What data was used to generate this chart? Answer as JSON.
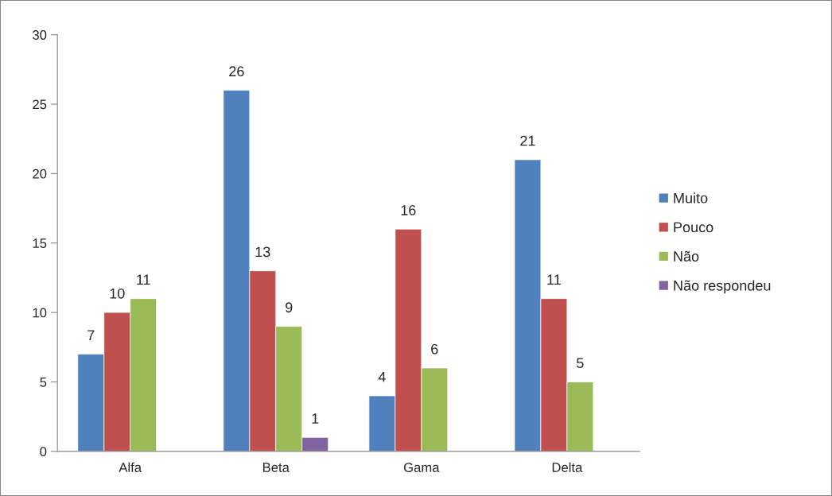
{
  "chart_data": {
    "type": "bar",
    "categories": [
      "Alfa",
      "Beta",
      "Gama",
      "Delta"
    ],
    "series": [
      {
        "name": "Muito",
        "color": "#4f81bd",
        "values": [
          7,
          26,
          4,
          21
        ]
      },
      {
        "name": "Pouco",
        "color": "#c0504d",
        "values": [
          10,
          13,
          16,
          11
        ]
      },
      {
        "name": "Não",
        "color": "#9bbb59",
        "values": [
          11,
          9,
          6,
          5
        ]
      },
      {
        "name": "Não respondeu",
        "color": "#8064a2",
        "values": [
          null,
          1,
          null,
          null
        ]
      }
    ],
    "ylim": [
      0,
      30
    ],
    "yticks": [
      0,
      5,
      10,
      15,
      20,
      25,
      30
    ],
    "data_labels": true,
    "legend": "right",
    "grid": false
  }
}
